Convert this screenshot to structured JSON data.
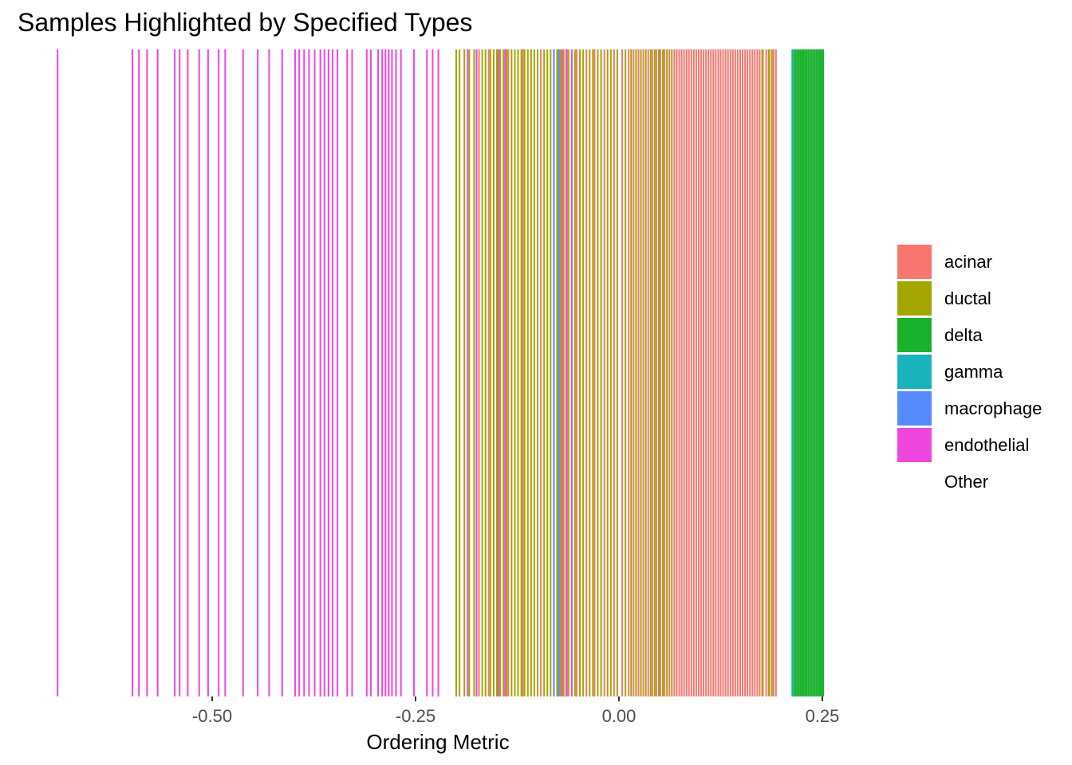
{
  "chart_data": {
    "type": "barcode",
    "title": "Samples Highlighted by Specified Types",
    "xlabel": "Ordering Metric",
    "ylabel": "",
    "xlim": [
      -0.69,
      0.26
    ],
    "x_ticks": [
      -0.5,
      -0.25,
      0.0,
      0.25
    ],
    "x_tick_labels": [
      "-0.50",
      "-0.25",
      "0.00",
      "0.25"
    ],
    "legend_position": "right",
    "series": [
      {
        "name": "acinar",
        "color": "#F8766D",
        "values": [
          -0.172,
          -0.16,
          -0.136,
          -0.118,
          -0.096,
          -0.08,
          -0.065,
          -0.052,
          -0.04,
          -0.03,
          -0.018,
          -0.006,
          0.004,
          0.012,
          0.018,
          0.024,
          0.03,
          0.036,
          0.041,
          0.046,
          0.051,
          0.056,
          0.062,
          0.068,
          0.071,
          0.074,
          0.077,
          0.08,
          0.083,
          0.086,
          0.089,
          0.092,
          0.095,
          0.098,
          0.101,
          0.104,
          0.107,
          0.11,
          0.113,
          0.116,
          0.119,
          0.122,
          0.125,
          0.128,
          0.131,
          0.134,
          0.137,
          0.14,
          0.143,
          0.146,
          0.149,
          0.152,
          0.155,
          0.158,
          0.161,
          0.164,
          0.167,
          0.17,
          0.173,
          0.177,
          0.181,
          0.185,
          0.19,
          0.193
        ]
      },
      {
        "name": "ductal",
        "color": "#A3A500",
        "values": [
          -0.2,
          -0.196,
          -0.19,
          -0.184,
          -0.178,
          -0.168,
          -0.164,
          -0.158,
          -0.154,
          -0.15,
          -0.146,
          -0.142,
          -0.138,
          -0.132,
          -0.128,
          -0.124,
          -0.12,
          -0.116,
          -0.112,
          -0.108,
          -0.104,
          -0.1,
          -0.092,
          -0.088,
          -0.084,
          -0.076,
          -0.072,
          -0.068,
          -0.062,
          -0.058,
          -0.054,
          -0.048,
          -0.044,
          -0.036,
          -0.032,
          -0.026,
          -0.022,
          -0.014,
          -0.01,
          -0.002,
          0.008,
          0.015,
          0.021,
          0.027,
          0.033,
          0.039,
          0.044,
          0.049,
          0.054,
          0.059,
          0.065,
          0.176,
          0.184,
          0.188
        ]
      },
      {
        "name": "delta",
        "color": "#1AB22D",
        "values": [
          0.215,
          0.217,
          0.219,
          0.221,
          0.223,
          0.225,
          0.227,
          0.229,
          0.231,
          0.233,
          0.235,
          0.237,
          0.239,
          0.241,
          0.243,
          0.245,
          0.247,
          0.249,
          0.251
        ]
      },
      {
        "name": "gamma",
        "color": "#19B3BB",
        "values": [
          0.213
        ]
      },
      {
        "name": "macrophage",
        "color": "#558AFF",
        "values": [
          -0.08,
          -0.074
        ]
      },
      {
        "name": "endothelial",
        "color": "#EF46DE",
        "values": [
          -0.69,
          -0.598,
          -0.59,
          -0.58,
          -0.567,
          -0.546,
          -0.54,
          -0.53,
          -0.516,
          -0.505,
          -0.492,
          -0.484,
          -0.462,
          -0.444,
          -0.43,
          -0.414,
          -0.398,
          -0.393,
          -0.387,
          -0.381,
          -0.374,
          -0.367,
          -0.362,
          -0.357,
          -0.352,
          -0.346,
          -0.334,
          -0.328,
          -0.31,
          -0.305,
          -0.296,
          -0.291,
          -0.287,
          -0.283,
          -0.279,
          -0.274,
          -0.268,
          -0.252,
          -0.236,
          -0.229,
          -0.222,
          -0.186,
          -0.175,
          -0.148,
          -0.14,
          -0.07,
          -0.064,
          -0.058
        ]
      },
      {
        "name": "Other",
        "color": "#FFFFFF",
        "values": []
      }
    ]
  }
}
